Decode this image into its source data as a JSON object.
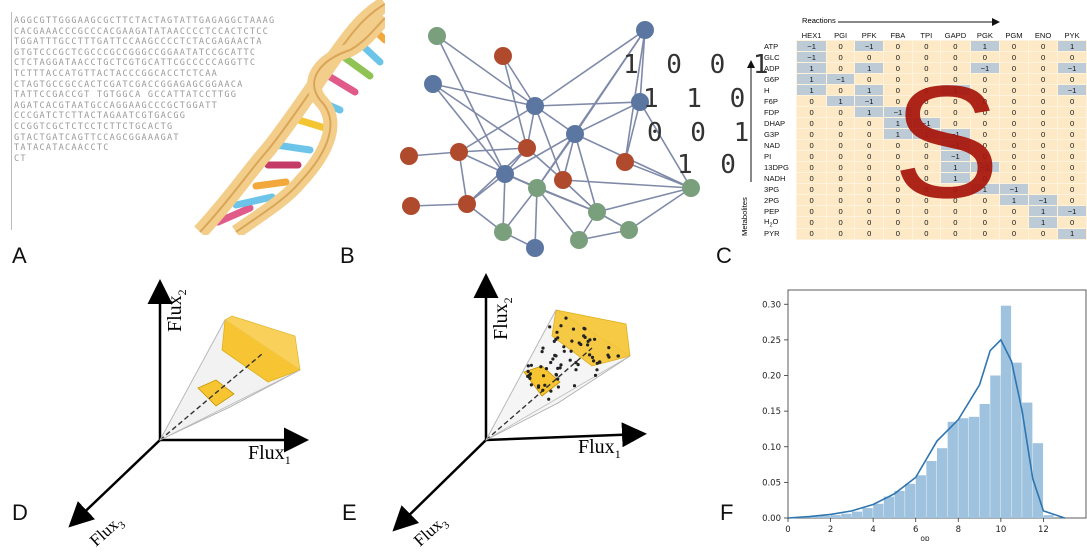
{
  "panels": {
    "A": {
      "label": "A"
    },
    "B": {
      "label": "B",
      "binary_rows": [
        "1 0 0 1",
        "1 1 0",
        "0 0 1",
        "1 0"
      ]
    },
    "C": {
      "label": "C",
      "reactions_label": "Reactions",
      "metabolites_label": "Metabolites",
      "overlay_letter": "S"
    },
    "D": {
      "label": "D"
    },
    "E": {
      "label": "E"
    },
    "F": {
      "label": "F"
    }
  },
  "dna_lines": [
    "AGGCGTTGGGAAGCGCTTCTACTAGTATTGAGAGGCTAAAG",
    "CACGAAACCCGCCCACGAAGATATAACCCCTCCACTCTCC",
    "TGGATTTGCCTTTGATTCCAAGCCCCTCTACGAGAACTA",
    "GTGTCCCGCTCGCCCGCCGGGCCGGAATATCCGCATTC",
    "CTCTAGGATAACCTGCTCGTGCATTCGCCCCCAGGTTC",
    "TCTTTACCATGTTACTACCCGGCACCTCTCAA",
    "CTAGTGCCGCCACTCGATCGACCGGAGAGCGGAACA",
    "TATTCCGACCGT TGTGGCA GCCATTATCCTTGG",
    "AGATCACGTAATGCCAGGAAGCCCGCTGGATT",
    "CCCGATCTCTTACTAGAATCGTGACGG",
    "CCGGTCGCTCTCCTCTTCTGCACTG",
    "GTACTGATCAGTTCCAGCGGAAAGAT",
    "TATACATACAACCTC",
    "CT"
  ],
  "stoich": {
    "reactions": [
      "HEX1",
      "PGI",
      "PFK",
      "FBA",
      "TPI",
      "GAPD",
      "PGK",
      "PGM",
      "ENO",
      "PYK"
    ],
    "metabolites": [
      "ATP",
      "GLC",
      "ADP",
      "G6P",
      "H",
      "F6P",
      "FDP",
      "DHAP",
      "G3P",
      "NAD",
      "PI",
      "13DPG",
      "NADH",
      "3PG",
      "2PG",
      "PEP",
      "H2O",
      "PYR"
    ],
    "rows": [
      [
        "−1",
        "0",
        "−1",
        "0",
        "0",
        "0",
        "1",
        "0",
        "0",
        "1"
      ],
      [
        "−1",
        "0",
        "0",
        "0",
        "0",
        "0",
        "0",
        "0",
        "0",
        "0"
      ],
      [
        "1",
        "0",
        "1",
        "0",
        "0",
        "0",
        "−1",
        "0",
        "0",
        "−1"
      ],
      [
        "1",
        "−1",
        "0",
        "0",
        "0",
        "0",
        "0",
        "0",
        "0",
        "0"
      ],
      [
        "1",
        "0",
        "1",
        "0",
        "0",
        "1",
        "0",
        "0",
        "0",
        "−1"
      ],
      [
        "0",
        "1",
        "−1",
        "0",
        "0",
        "0",
        "0",
        "0",
        "0",
        "0"
      ],
      [
        "0",
        "0",
        "1",
        "−1",
        "0",
        "0",
        "0",
        "0",
        "0",
        "0"
      ],
      [
        "0",
        "0",
        "0",
        "1",
        "−1",
        "0",
        "0",
        "0",
        "0",
        "0"
      ],
      [
        "0",
        "0",
        "0",
        "1",
        "1",
        "−1",
        "0",
        "0",
        "0",
        "0"
      ],
      [
        "0",
        "0",
        "0",
        "0",
        "0",
        "−1",
        "0",
        "0",
        "0",
        "0"
      ],
      [
        "0",
        "0",
        "0",
        "0",
        "0",
        "−1",
        "0",
        "0",
        "0",
        "0"
      ],
      [
        "0",
        "0",
        "0",
        "0",
        "0",
        "1",
        "−1",
        "0",
        "0",
        "0"
      ],
      [
        "0",
        "0",
        "0",
        "0",
        "0",
        "1",
        "0",
        "0",
        "0",
        "0"
      ],
      [
        "0",
        "0",
        "0",
        "0",
        "0",
        "0",
        "1",
        "−1",
        "0",
        "0"
      ],
      [
        "0",
        "0",
        "0",
        "0",
        "0",
        "0",
        "0",
        "1",
        "−1",
        "0"
      ],
      [
        "0",
        "0",
        "0",
        "0",
        "0",
        "0",
        "0",
        "0",
        "1",
        "−1"
      ],
      [
        "0",
        "0",
        "0",
        "0",
        "0",
        "0",
        "0",
        "0",
        "1",
        "0"
      ],
      [
        "0",
        "0",
        "0",
        "0",
        "0",
        "0",
        "0",
        "0",
        "0",
        "1"
      ]
    ]
  },
  "flux_axes": {
    "x": "Flux",
    "x_sub": "1",
    "y": "Flux",
    "y_sub": "2",
    "z": "Flux",
    "z_sub": "3"
  },
  "histogram": {
    "x_label": "op",
    "x_ticks": [
      "0",
      "2",
      "4",
      "6",
      "8",
      "10",
      "12"
    ],
    "y_ticks": [
      "0.00",
      "0.05",
      "0.10",
      "0.15",
      "0.20",
      "0.25",
      "0.30"
    ]
  },
  "colors": {
    "blue_node": "#5b77a1",
    "red_node": "#b04a2c",
    "green_node": "#7a9f7c",
    "edge": "#7f8aa8",
    "polytope": "#f7c531",
    "hist_bar": "#9fc3df",
    "kde": "#2f75b0",
    "s_overlay": "#a8160b"
  },
  "chart_data": {
    "type": "bar",
    "xlabel": "op",
    "ylabel": "",
    "xlim": [
      0,
      14
    ],
    "ylim": [
      0,
      0.32
    ],
    "bin_edges": [
      0.5,
      1,
      1.5,
      2,
      2.5,
      3,
      3.5,
      4,
      4.5,
      5,
      5.5,
      6,
      6.5,
      7,
      7.5,
      8,
      8.5,
      9,
      9.5,
      10,
      10.5,
      11,
      11.5,
      12,
      12.5
    ],
    "values": [
      0.001,
      0.002,
      0.003,
      0.004,
      0.006,
      0.009,
      0.014,
      0.02,
      0.03,
      0.038,
      0.048,
      0.06,
      0.08,
      0.098,
      0.135,
      0.14,
      0.142,
      0.16,
      0.2,
      0.298,
      0.218,
      0.162,
      0.105,
      0.004
    ],
    "kde": {
      "x": [
        0,
        1,
        2,
        3,
        4,
        5,
        6,
        7,
        8,
        9,
        9.5,
        10,
        10.5,
        11,
        11.5,
        12,
        13
      ],
      "y": [
        0.0,
        0.002,
        0.005,
        0.01,
        0.019,
        0.034,
        0.057,
        0.108,
        0.138,
        0.187,
        0.235,
        0.25,
        0.22,
        0.15,
        0.055,
        0.01,
        0.0
      ]
    }
  }
}
